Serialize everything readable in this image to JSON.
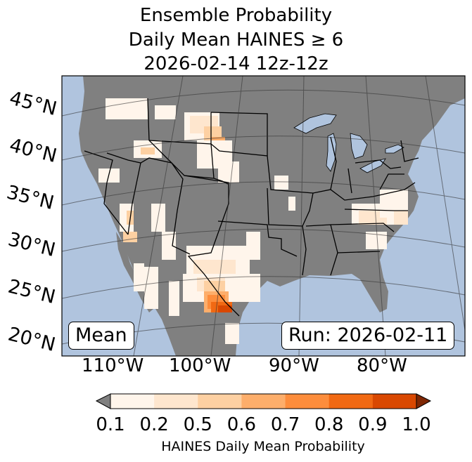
{
  "title": {
    "line1": "Ensemble Probability",
    "line2": "Daily Mean HAINES ≥ 6",
    "line3": "2026-02-14 12z-12z"
  },
  "map": {
    "ocean_color": "#b0c4de",
    "land_color": "#808080",
    "lat_labels": [
      "45°N",
      "40°N",
      "35°N",
      "30°N",
      "25°N",
      "20°N"
    ],
    "lon_labels": [
      "110°W",
      "100°W",
      "90°W",
      "80°W"
    ]
  },
  "stat_label": "Mean",
  "run_label": "Run: 2026-02-11",
  "colorbar": {
    "label": "HAINES Daily Mean Probability",
    "ticks": [
      "0.1",
      "0.2",
      "0.5",
      "0.6",
      "0.7",
      "0.8",
      "0.9",
      "1.0"
    ],
    "colors": [
      "#fff5eb",
      "#fee6ce",
      "#fdd0a2",
      "#fdae6b",
      "#fd8d3c",
      "#f16913",
      "#d94801",
      "#7f2704"
    ],
    "under_color": "#808080"
  }
}
